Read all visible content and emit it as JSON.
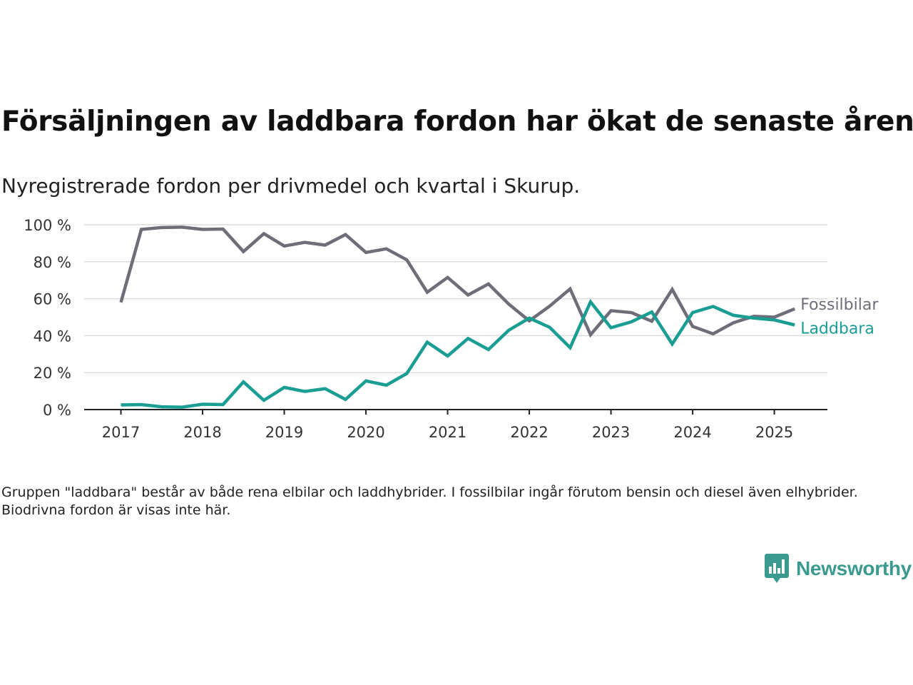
{
  "title": "Försäljningen av laddbara fordon har ökat de senaste åren",
  "subtitle": "Nyregistrerade fordon per drivmedel och kvartal i Skurup.",
  "note": "Gruppen \"laddbara\" består av både rena elbilar och laddhybrider. I fossilbilar ingår förutom bensin och diesel även elhybrider. Biodrivna fordon är visas inte här.",
  "brand": "Newsworthy",
  "chart_data": {
    "type": "line",
    "x": [
      2017.0,
      2017.25,
      2017.5,
      2017.75,
      2018.0,
      2018.25,
      2018.5,
      2018.75,
      2019.0,
      2019.25,
      2019.5,
      2019.75,
      2020.0,
      2020.25,
      2020.5,
      2020.75,
      2021.0,
      2021.25,
      2021.5,
      2021.75,
      2022.0,
      2022.25,
      2022.5,
      2022.75,
      2023.0,
      2023.25,
      2023.5,
      2023.75,
      2024.0,
      2024.25,
      2024.5,
      2024.75,
      2025.0,
      2025.25
    ],
    "x_ticks": [
      2017,
      2018,
      2019,
      2020,
      2021,
      2022,
      2023,
      2024,
      2025
    ],
    "xlim": [
      2016.55,
      2025.65
    ],
    "ylim": [
      0,
      100
    ],
    "y_ticks": [
      0,
      20,
      40,
      60,
      80,
      100
    ],
    "y_tick_labels": [
      "0 %",
      "20 %",
      "40 %",
      "60 %",
      "80 %",
      "100 %"
    ],
    "grid": true,
    "legend": "inline labels at line ends",
    "series": [
      {
        "name": "Fossilbilar",
        "color": "#6e6e78",
        "values": [
          58,
          97.5,
          98.5,
          98.7,
          97.5,
          97.7,
          85.5,
          95.2,
          88.5,
          90.5,
          89,
          94.7,
          85,
          87,
          81,
          63.5,
          71.5,
          62,
          68,
          57,
          48,
          56,
          65.3,
          40.5,
          53.5,
          52.5,
          47.8,
          65,
          45,
          41,
          47,
          50.5,
          50,
          54.5
        ]
      },
      {
        "name": "Laddbara",
        "color": "#1a9e93",
        "values": [
          2.5,
          2.7,
          1.5,
          1.3,
          2.9,
          2.7,
          15,
          5,
          12,
          9.8,
          11.3,
          5.5,
          15.5,
          13.2,
          19.5,
          36.5,
          29,
          38.5,
          32.5,
          43,
          49.5,
          44.5,
          33.5,
          58.3,
          44.3,
          47.5,
          52.8,
          35.5,
          52.5,
          55.8,
          51,
          49.5,
          48.5,
          45.8
        ]
      }
    ]
  }
}
